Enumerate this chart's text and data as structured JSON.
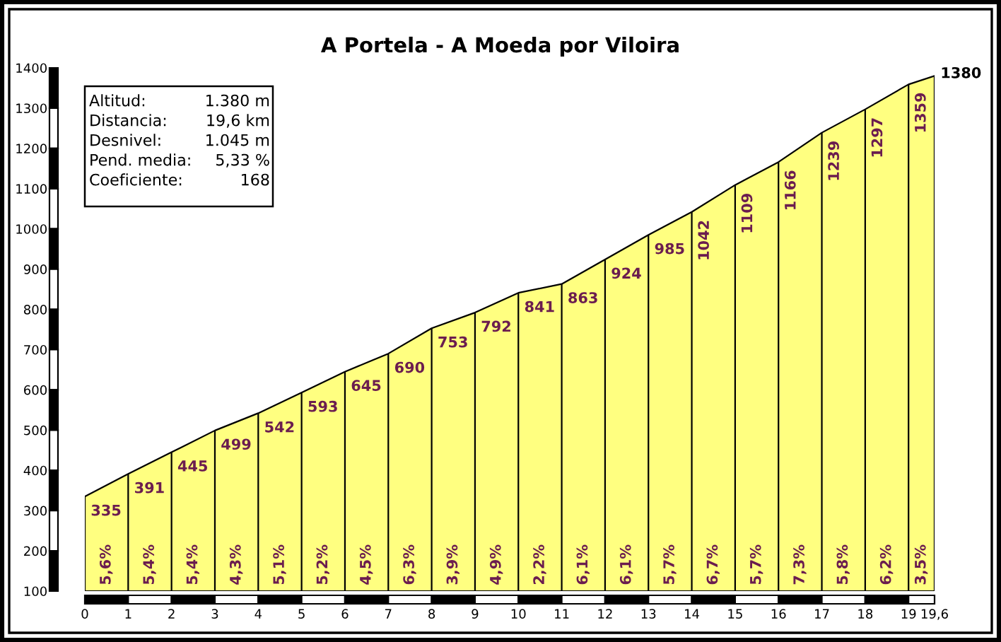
{
  "chart_data": {
    "type": "area",
    "title": "A Portela - A Moeda por Viloira",
    "x": [
      0,
      1,
      2,
      3,
      4,
      5,
      6,
      7,
      8,
      9,
      10,
      11,
      12,
      13,
      14,
      15,
      16,
      17,
      18,
      19,
      19.6
    ],
    "values": [
      335,
      391,
      445,
      499,
      542,
      593,
      645,
      690,
      753,
      792,
      841,
      863,
      924,
      985,
      1042,
      1109,
      1166,
      1239,
      1297,
      1359,
      1380
    ],
    "color": "#ffff80",
    "data_labels": true,
    "grid": "x",
    "xlim": [
      0,
      19.6
    ],
    "ylim": [
      100,
      1400
    ],
    "xticks": [
      0,
      1,
      2,
      3,
      4,
      5,
      6,
      7,
      8,
      9,
      10,
      11,
      12,
      13,
      14,
      15,
      16,
      17,
      18,
      19,
      {
        "value": 19.6,
        "label": "19,6"
      }
    ],
    "yticks": [
      100,
      200,
      300,
      400,
      500,
      600,
      700,
      800,
      900,
      1000,
      1100,
      1200,
      1300,
      1400
    ],
    "annotations": [
      {
        "text": "5,6%",
        "x": 0.5,
        "y": 100
      },
      {
        "text": "5,4%",
        "x": 1.5,
        "y": 100
      },
      {
        "text": "5,4%",
        "x": 2.5,
        "y": 100
      },
      {
        "text": "4,3%",
        "x": 3.5,
        "y": 100
      },
      {
        "text": "5,1%",
        "x": 4.5,
        "y": 100
      },
      {
        "text": "5,2%",
        "x": 5.5,
        "y": 100
      },
      {
        "text": "4,5%",
        "x": 6.5,
        "y": 100
      },
      {
        "text": "6,3%",
        "x": 7.5,
        "y": 100
      },
      {
        "text": "3,9%",
        "x": 8.5,
        "y": 100
      },
      {
        "text": "4,9%",
        "x": 9.5,
        "y": 100
      },
      {
        "text": "2,2%",
        "x": 10.5,
        "y": 100
      },
      {
        "text": "6,1%",
        "x": 11.5,
        "y": 100
      },
      {
        "text": "6,1%",
        "x": 12.5,
        "y": 100
      },
      {
        "text": "5,7%",
        "x": 13.5,
        "y": 100
      },
      {
        "text": "6,7%",
        "x": 14.5,
        "y": 100
      },
      {
        "text": "5,7%",
        "x": 15.5,
        "y": 100
      },
      {
        "text": "7,3%",
        "x": 16.5,
        "y": 100
      },
      {
        "text": "5,8%",
        "x": 17.5,
        "y": 100
      },
      {
        "text": "6,2%",
        "x": 18.5,
        "y": 100
      },
      {
        "text": "3,5%",
        "x": 19.3,
        "y": 100
      },
      "Altitud:",
      "1.380 m",
      "Distancia:",
      "19,6 km",
      "Desnivel:",
      "1.045 m",
      "Pend. media:",
      "5,33 %",
      "Coeficiente:",
      "168"
    ]
  }
}
